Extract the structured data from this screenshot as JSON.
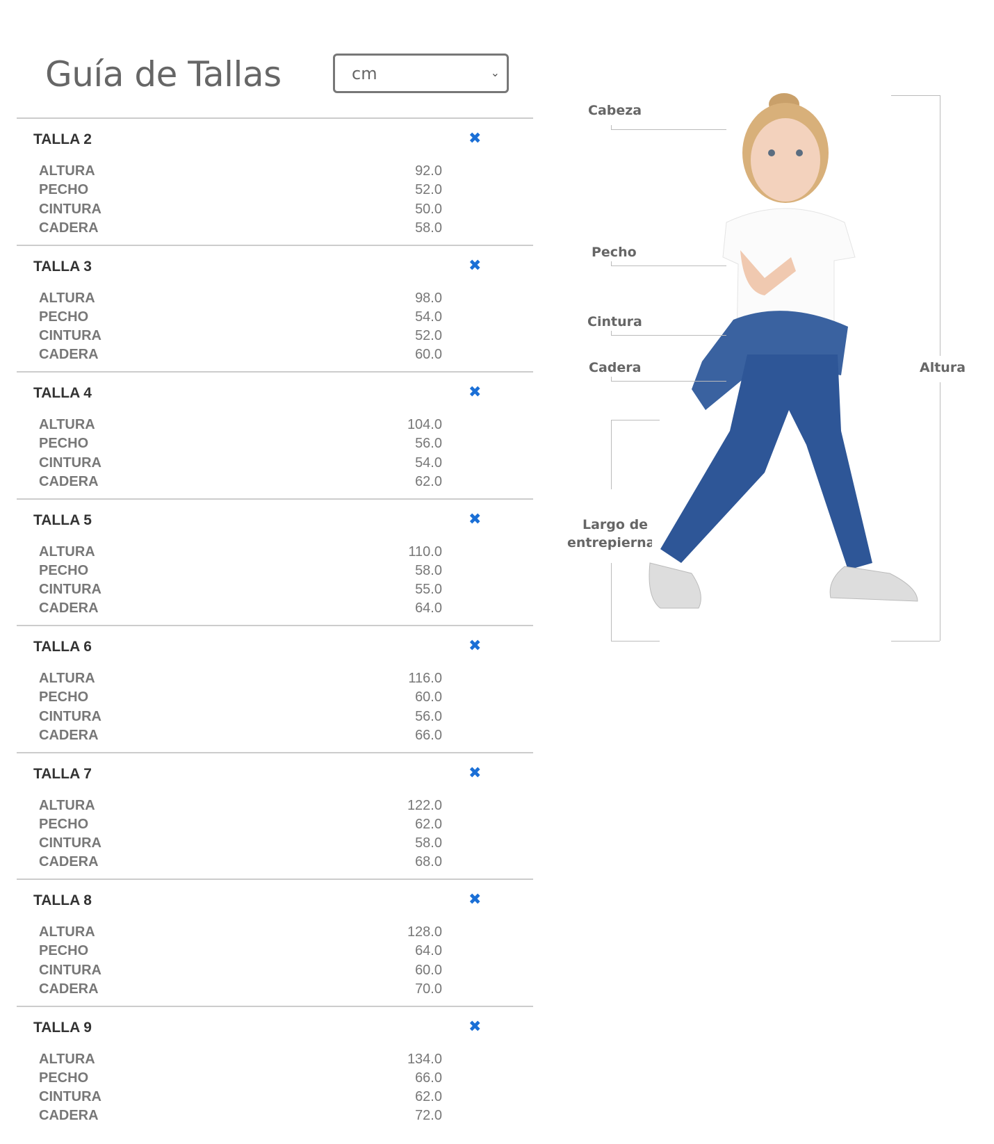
{
  "header": {
    "title": "Guía de Tallas",
    "unit_select": {
      "value": "cm"
    }
  },
  "colors": {
    "accent": "#1a6fd6",
    "text": "#666666",
    "heading": "#333333"
  },
  "sizes": [
    {
      "label": "TALLA 2",
      "rows": [
        {
          "name": "ALTURA",
          "value": "92.0"
        },
        {
          "name": "PECHO",
          "value": "52.0"
        },
        {
          "name": "CINTURA",
          "value": "50.0"
        },
        {
          "name": "CADERA",
          "value": "58.0"
        }
      ]
    },
    {
      "label": "TALLA 3",
      "rows": [
        {
          "name": "ALTURA",
          "value": "98.0"
        },
        {
          "name": "PECHO",
          "value": "54.0"
        },
        {
          "name": "CINTURA",
          "value": "52.0"
        },
        {
          "name": "CADERA",
          "value": "60.0"
        }
      ]
    },
    {
      "label": "TALLA 4",
      "rows": [
        {
          "name": "ALTURA",
          "value": "104.0"
        },
        {
          "name": "PECHO",
          "value": "56.0"
        },
        {
          "name": "CINTURA",
          "value": "54.0"
        },
        {
          "name": "CADERA",
          "value": "62.0"
        }
      ]
    },
    {
      "label": "TALLA 5",
      "rows": [
        {
          "name": "ALTURA",
          "value": "110.0"
        },
        {
          "name": "PECHO",
          "value": "58.0"
        },
        {
          "name": "CINTURA",
          "value": "55.0"
        },
        {
          "name": "CADERA",
          "value": "64.0"
        }
      ]
    },
    {
      "label": "TALLA 6",
      "rows": [
        {
          "name": "ALTURA",
          "value": "116.0"
        },
        {
          "name": "PECHO",
          "value": "60.0"
        },
        {
          "name": "CINTURA",
          "value": "56.0"
        },
        {
          "name": "CADERA",
          "value": "66.0"
        }
      ]
    },
    {
      "label": "TALLA 7",
      "rows": [
        {
          "name": "ALTURA",
          "value": "122.0"
        },
        {
          "name": "PECHO",
          "value": "62.0"
        },
        {
          "name": "CINTURA",
          "value": "58.0"
        },
        {
          "name": "CADERA",
          "value": "68.0"
        }
      ]
    },
    {
      "label": "TALLA 8",
      "rows": [
        {
          "name": "ALTURA",
          "value": "128.0"
        },
        {
          "name": "PECHO",
          "value": "64.0"
        },
        {
          "name": "CINTURA",
          "value": "60.0"
        },
        {
          "name": "CADERA",
          "value": "70.0"
        }
      ]
    },
    {
      "label": "TALLA 9",
      "rows": [
        {
          "name": "ALTURA",
          "value": "134.0"
        },
        {
          "name": "PECHO",
          "value": "66.0"
        },
        {
          "name": "CINTURA",
          "value": "62.0"
        },
        {
          "name": "CADERA",
          "value": "72.0"
        }
      ]
    }
  ],
  "close_icon": "x-icon",
  "figure": {
    "labels": {
      "cabeza": "Cabeza",
      "pecho": "Pecho",
      "cintura": "Cintura",
      "cadera": "Cadera",
      "largo_1": "Largo de",
      "largo_2": "entrepiernas",
      "altura": "Altura"
    }
  }
}
